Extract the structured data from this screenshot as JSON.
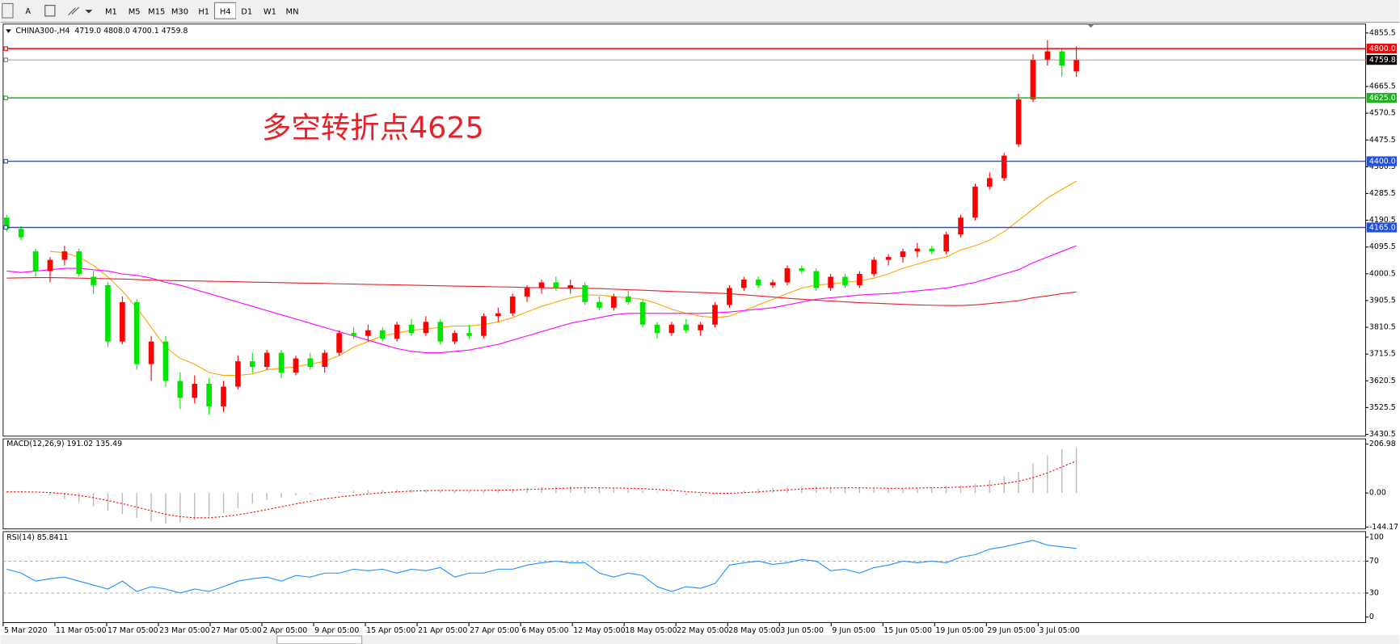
{
  "toolbar": {
    "text_tool": "A",
    "periods": [
      "M1",
      "M5",
      "M15",
      "M30",
      "H1",
      "H4",
      "D1",
      "W1",
      "MN"
    ],
    "active": "H4"
  },
  "chart_data": [
    {
      "type": "candlestick",
      "title": "CHINA300-,H4  4719.0 4808.0 4700.1 4759.8",
      "annotation": "多空转折点4625",
      "x_labels": [
        "5 Mar 2020",
        "11 Mar 05:00",
        "17 Mar 05:00",
        "23 Mar 05:00",
        "27 Mar 05:00",
        "2 Apr 05:00",
        "9 Apr 05:00",
        "15 Apr 05:00",
        "21 Apr 05:00",
        "27 Apr 05:00",
        "6 May 05:00",
        "12 May 05:00",
        "18 May 05:00",
        "22 May 05:00",
        "28 May 05:00",
        "3 Jun 05:00",
        "9 Jun 05:00",
        "15 Jun 05:00",
        "19 Jun 05:00",
        "29 Jun 05:00",
        "3 Jul 05:00"
      ],
      "up_color": "#ff0000",
      "down_color": "#00e600",
      "candles": [
        [
          4200,
          4210,
          4150,
          4160
        ],
        [
          4160,
          4170,
          4120,
          4130
        ],
        [
          4080,
          4090,
          3990,
          4010
        ],
        [
          4010,
          4060,
          3970,
          4050
        ],
        [
          4050,
          4100,
          4030,
          4080
        ],
        [
          4080,
          4090,
          3990,
          4000
        ],
        [
          3990,
          4010,
          3930,
          3960
        ],
        [
          3960,
          3970,
          3740,
          3760
        ],
        [
          3760,
          3920,
          3750,
          3900
        ],
        [
          3900,
          3910,
          3660,
          3680
        ],
        [
          3680,
          3780,
          3620,
          3760
        ],
        [
          3760,
          3780,
          3600,
          3620
        ],
        [
          3620,
          3650,
          3520,
          3560
        ],
        [
          3560,
          3640,
          3540,
          3610
        ],
        [
          3610,
          3630,
          3500,
          3530
        ],
        [
          3530,
          3620,
          3510,
          3600
        ],
        [
          3600,
          3710,
          3590,
          3690
        ],
        [
          3690,
          3720,
          3650,
          3670
        ],
        [
          3670,
          3730,
          3660,
          3720
        ],
        [
          3720,
          3730,
          3630,
          3650
        ],
        [
          3650,
          3710,
          3640,
          3700
        ],
        [
          3700,
          3720,
          3660,
          3670
        ],
        [
          3670,
          3730,
          3650,
          3720
        ],
        [
          3720,
          3800,
          3710,
          3790
        ],
        [
          3790,
          3810,
          3770,
          3780
        ],
        [
          3780,
          3820,
          3760,
          3800
        ],
        [
          3800,
          3810,
          3760,
          3770
        ],
        [
          3770,
          3830,
          3760,
          3820
        ],
        [
          3820,
          3840,
          3780,
          3790
        ],
        [
          3790,
          3850,
          3780,
          3830
        ],
        [
          3830,
          3840,
          3750,
          3760
        ],
        [
          3760,
          3800,
          3750,
          3790
        ],
        [
          3790,
          3820,
          3770,
          3780
        ],
        [
          3780,
          3860,
          3770,
          3850
        ],
        [
          3850,
          3880,
          3830,
          3860
        ],
        [
          3860,
          3930,
          3850,
          3920
        ],
        [
          3920,
          3960,
          3900,
          3950
        ],
        [
          3950,
          3980,
          3930,
          3970
        ],
        [
          3970,
          3990,
          3940,
          3950
        ],
        [
          3950,
          3980,
          3930,
          3960
        ],
        [
          3960,
          3970,
          3890,
          3900
        ],
        [
          3900,
          3920,
          3870,
          3880
        ],
        [
          3880,
          3930,
          3870,
          3920
        ],
        [
          3920,
          3940,
          3890,
          3900
        ],
        [
          3900,
          3910,
          3810,
          3820
        ],
        [
          3820,
          3830,
          3770,
          3790
        ],
        [
          3790,
          3830,
          3780,
          3820
        ],
        [
          3820,
          3840,
          3790,
          3800
        ],
        [
          3800,
          3830,
          3780,
          3820
        ],
        [
          3820,
          3900,
          3810,
          3890
        ],
        [
          3890,
          3960,
          3880,
          3950
        ],
        [
          3950,
          3990,
          3940,
          3980
        ],
        [
          3980,
          3990,
          3950,
          3960
        ],
        [
          3960,
          3980,
          3950,
          3970
        ],
        [
          3970,
          4030,
          3960,
          4020
        ],
        [
          4020,
          4030,
          4000,
          4010
        ],
        [
          4010,
          4020,
          3940,
          3950
        ],
        [
          3950,
          4000,
          3940,
          3990
        ],
        [
          3990,
          4000,
          3950,
          3960
        ],
        [
          3960,
          4010,
          3950,
          4000
        ],
        [
          4000,
          4060,
          3990,
          4050
        ],
        [
          4050,
          4070,
          4030,
          4060
        ],
        [
          4060,
          4090,
          4040,
          4080
        ],
        [
          4080,
          4110,
          4060,
          4090
        ],
        [
          4090,
          4100,
          4070,
          4080
        ],
        [
          4080,
          4150,
          4070,
          4140
        ],
        [
          4140,
          4210,
          4130,
          4200
        ],
        [
          4200,
          4320,
          4190,
          4310
        ],
        [
          4310,
          4360,
          4300,
          4340
        ],
        [
          4340,
          4430,
          4330,
          4420
        ],
        [
          4460,
          4640,
          4450,
          4620
        ],
        [
          4620,
          4780,
          4610,
          4760
        ],
        [
          4760,
          4830,
          4740,
          4790
        ],
        [
          4790,
          4800,
          4700,
          4740
        ],
        [
          4719,
          4808,
          4700.1,
          4759.8
        ]
      ],
      "series": [
        {
          "color": "#ffa500",
          "values": [
            null,
            null,
            null,
            4080,
            4075,
            4060,
            4030,
            3990,
            3940,
            3880,
            3810,
            3740,
            3700,
            3680,
            3650,
            3640,
            3640,
            3645,
            3660,
            3665,
            3670,
            3680,
            3690,
            3710,
            3740,
            3760,
            3780,
            3790,
            3800,
            3805,
            3810,
            3815,
            3815,
            3820,
            3830,
            3845,
            3865,
            3885,
            3900,
            3915,
            3925,
            3925,
            3920,
            3915,
            3910,
            3895,
            3875,
            3860,
            3850,
            3845,
            3850,
            3870,
            3890,
            3910,
            3930,
            3950,
            3960,
            3965,
            3970,
            3975,
            3985,
            4000,
            4020,
            4035,
            4050,
            4060,
            4085,
            4100,
            4120,
            4150,
            4190,
            4230,
            4270,
            4300,
            4330
          ]
        },
        {
          "color": "#ff00ff",
          "values": [
            4010,
            4005,
            4010,
            4015,
            4020,
            4020,
            4015,
            4010,
            4000,
            3995,
            3985,
            3970,
            3960,
            3945,
            3930,
            3915,
            3900,
            3885,
            3870,
            3855,
            3840,
            3825,
            3810,
            3795,
            3780,
            3765,
            3750,
            3735,
            3725,
            3720,
            3720,
            3725,
            3730,
            3740,
            3750,
            3765,
            3780,
            3795,
            3810,
            3825,
            3835,
            3845,
            3855,
            3860,
            3860,
            3860,
            3860,
            3860,
            3860,
            3862,
            3865,
            3870,
            3875,
            3880,
            3890,
            3900,
            3910,
            3915,
            3920,
            3925,
            3928,
            3930,
            3935,
            3940,
            3945,
            3950,
            3960,
            3970,
            3985,
            4000,
            4015,
            4040,
            4060,
            4080,
            4100
          ]
        },
        {
          "color": "#e8202a",
          "values": [
            3985,
            3986,
            3987,
            3987,
            3986,
            3985,
            3984,
            3983,
            3982,
            3980,
            3978,
            3977,
            3976,
            3975,
            3974,
            3973,
            3972,
            3971,
            3970,
            3969,
            3968,
            3967,
            3966,
            3965,
            3964,
            3963,
            3962,
            3961,
            3960,
            3959,
            3958,
            3957,
            3956,
            3955,
            3954,
            3953,
            3952,
            3951,
            3950,
            3950,
            3949,
            3948,
            3946,
            3944,
            3942,
            3940,
            3938,
            3936,
            3934,
            3932,
            3930,
            3926,
            3922,
            3918,
            3914,
            3910,
            3907,
            3904,
            3901,
            3898,
            3896,
            3894,
            3892,
            3890,
            3889,
            3888,
            3888,
            3890,
            3895,
            3900,
            3905,
            3915,
            3922,
            3930,
            3936
          ]
        }
      ],
      "levels": [
        {
          "value": 4800,
          "label": "4800.0",
          "color": "#ff0000"
        },
        {
          "value": 4759.8,
          "label": "4759.8",
          "color": "#808080"
        },
        {
          "value": 4625,
          "label": "4625.0",
          "color": "#22b022"
        },
        {
          "value": 4400,
          "label": "4400.0",
          "color": "#2050e0"
        },
        {
          "value": 4165,
          "label": "4165.0",
          "color": "#2050e0"
        }
      ],
      "ylim": [
        3424,
        4887
      ],
      "yticks": [
        4855.5,
        4665.5,
        4570.5,
        4475.5,
        4380.5,
        4285.5,
        4190.5,
        4095.5,
        4000.5,
        3905.5,
        3810.5,
        3715.5,
        3620.5,
        3525.5,
        3430.5
      ]
    },
    {
      "type": "macd",
      "title": "MACD(12,26,9) 191.02 135.49",
      "series": [
        {
          "color": "#b8b8b8",
          "values": [
            5,
            3,
            0,
            -10,
            -25,
            -40,
            -55,
            -75,
            -90,
            -105,
            -120,
            -130,
            -125,
            -115,
            -100,
            -85,
            -65,
            -45,
            -30,
            -20,
            -10,
            -5,
            0,
            5,
            10,
            12,
            14,
            15,
            15,
            14,
            12,
            10,
            10,
            12,
            15,
            18,
            22,
            25,
            27,
            28,
            26,
            22,
            18,
            15,
            12,
            5,
            -5,
            -10,
            -12,
            -8,
            0,
            10,
            18,
            22,
            25,
            28,
            28,
            25,
            22,
            20,
            18,
            18,
            20,
            22,
            25,
            28,
            32,
            40,
            55,
            70,
            90,
            125,
            160,
            185,
            191.02
          ]
        },
        {
          "color": "#ff0000",
          "values": [
            5,
            5,
            4,
            2,
            -3,
            -10,
            -20,
            -32,
            -45,
            -60,
            -75,
            -90,
            -100,
            -105,
            -105,
            -100,
            -92,
            -82,
            -70,
            -58,
            -46,
            -35,
            -25,
            -17,
            -10,
            -4,
            1,
            5,
            8,
            10,
            11,
            11,
            11,
            11,
            12,
            13,
            15,
            17,
            19,
            21,
            22,
            22,
            21,
            20,
            18,
            15,
            11,
            6,
            2,
            -1,
            -1,
            1,
            5,
            9,
            13,
            17,
            20,
            21,
            22,
            22,
            21,
            20,
            20,
            21,
            22,
            23,
            25,
            28,
            33,
            40,
            50,
            65,
            85,
            110,
            135.49
          ]
        }
      ],
      "ylim": [
        -152,
        229
      ],
      "yticks": [
        206.98,
        {
          "value": 0,
          "label": "0.00"
        },
        -144.17
      ]
    },
    {
      "type": "rsi",
      "title": "RSI(14) 85.8411",
      "color": "#1e90ff",
      "values": [
        60,
        55,
        45,
        48,
        50,
        45,
        40,
        35,
        45,
        32,
        38,
        35,
        30,
        35,
        32,
        38,
        45,
        48,
        50,
        45,
        52,
        50,
        55,
        55,
        60,
        58,
        60,
        55,
        60,
        58,
        62,
        50,
        55,
        55,
        60,
        60,
        65,
        68,
        70,
        68,
        68,
        55,
        50,
        55,
        52,
        38,
        32,
        38,
        36,
        42,
        65,
        68,
        70,
        66,
        68,
        72,
        70,
        58,
        60,
        55,
        62,
        65,
        70,
        68,
        70,
        68,
        75,
        78,
        85,
        88,
        92,
        96,
        90,
        88,
        85.8411
      ],
      "levels": [
        70,
        30
      ],
      "ylim": [
        -7,
        107
      ],
      "yticks": [
        100,
        70,
        30,
        0
      ]
    }
  ]
}
